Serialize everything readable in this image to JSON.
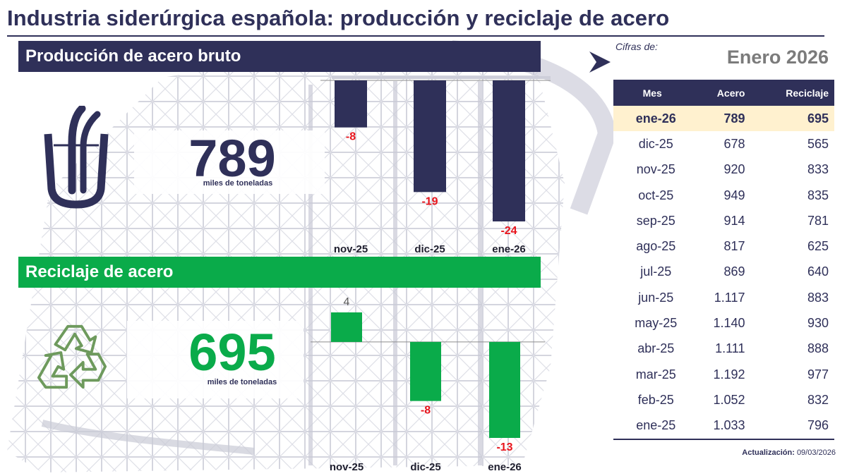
{
  "title": "Industria siderúrgica española: producción y reciclaje de acero",
  "production": {
    "banner": "Producción de acero bruto",
    "value": "789",
    "unit": "miles de toneladas"
  },
  "recycling": {
    "banner": "Reciclaje de acero",
    "value": "695",
    "unit": "miles de toneladas"
  },
  "side": {
    "cifras_label": "Cifras de:",
    "period": "Enero 2026",
    "update_label": "Actualización:",
    "update_date": "09/03/2026"
  },
  "colors": {
    "navy": "#2f3059",
    "green": "#0aab4a",
    "red": "#e8141c",
    "highlight": "#fff1cf",
    "period_gray": "#7b7b7b"
  },
  "icons": {
    "production": "steel-ladle-icon",
    "recycling": "recycle-icon",
    "period": "chevron-right-icon"
  },
  "chart_data": [
    {
      "type": "bar",
      "title": "Producción de acero bruto",
      "categories": [
        "nov-25",
        "dic-25",
        "ene-26"
      ],
      "values": [
        -8,
        -19,
        -24
      ],
      "ylim": [
        -24,
        0
      ],
      "bar_color": "#2f3059",
      "label_color": "#e8141c"
    },
    {
      "type": "bar",
      "title": "Reciclaje de acero",
      "categories": [
        "nov-25",
        "dic-25",
        "ene-26"
      ],
      "values": [
        4,
        -8,
        -13
      ],
      "ylim": [
        -13,
        4
      ],
      "bar_color": "#0aab4a",
      "label_color_positive": "#595959",
      "label_color_negative": "#e8141c"
    },
    {
      "type": "table",
      "columns": [
        "Mes",
        "Acero",
        "Reciclaje"
      ],
      "rows": [
        [
          "ene-26",
          "789",
          "695"
        ],
        [
          "dic-25",
          "678",
          "565"
        ],
        [
          "nov-25",
          "920",
          "833"
        ],
        [
          "oct-25",
          "949",
          "835"
        ],
        [
          "sep-25",
          "914",
          "781"
        ],
        [
          "ago-25",
          "817",
          "625"
        ],
        [
          "jul-25",
          "869",
          "640"
        ],
        [
          "jun-25",
          "1.117",
          "883"
        ],
        [
          "may-25",
          "1.140",
          "930"
        ],
        [
          "abr-25",
          "1.111",
          "888"
        ],
        [
          "mar-25",
          "1.192",
          "977"
        ],
        [
          "feb-25",
          "1.052",
          "832"
        ],
        [
          "ene-25",
          "1.033",
          "796"
        ]
      ],
      "highlight_row": 0
    }
  ]
}
